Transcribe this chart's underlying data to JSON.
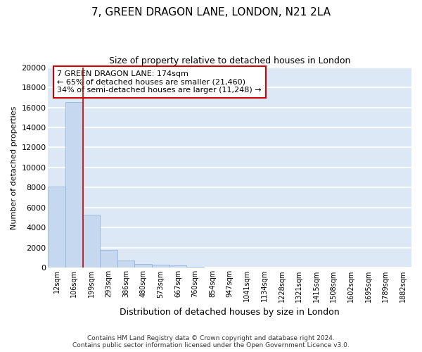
{
  "title": "7, GREEN DRAGON LANE, LONDON, N21 2LA",
  "subtitle": "Size of property relative to detached houses in London",
  "xlabel": "Distribution of detached houses by size in London",
  "ylabel": "Number of detached properties",
  "footer_line1": "Contains HM Land Registry data © Crown copyright and database right 2024.",
  "footer_line2": "Contains public sector information licensed under the Open Government Licence v3.0.",
  "annotation_line1": "7 GREEN DRAGON LANE: 174sqm",
  "annotation_line2": "← 65% of detached houses are smaller (21,460)",
  "annotation_line3": "34% of semi-detached houses are larger (11,248) →",
  "bar_color": "#c5d8ef",
  "bar_edge_color": "#8ab0d4",
  "red_line_color": "#cc0000",
  "annotation_box_edge_color": "#cc0000",
  "background_color": "#dce8f5",
  "grid_color": "#ffffff",
  "categories": [
    "12sqm",
    "106sqm",
    "199sqm",
    "293sqm",
    "386sqm",
    "480sqm",
    "573sqm",
    "667sqm",
    "760sqm",
    "854sqm",
    "947sqm",
    "1041sqm",
    "1134sqm",
    "1228sqm",
    "1321sqm",
    "1415sqm",
    "1508sqm",
    "1602sqm",
    "1695sqm",
    "1789sqm",
    "1882sqm"
  ],
  "values": [
    8100,
    16500,
    5300,
    1750,
    750,
    350,
    280,
    230,
    130,
    0,
    0,
    0,
    0,
    0,
    0,
    0,
    0,
    0,
    0,
    0,
    0
  ],
  "red_line_x": 1.5,
  "ylim": [
    0,
    20000
  ],
  "yticks": [
    0,
    2000,
    4000,
    6000,
    8000,
    10000,
    12000,
    14000,
    16000,
    18000,
    20000
  ],
  "figsize": [
    6.0,
    5.0
  ],
  "dpi": 100
}
